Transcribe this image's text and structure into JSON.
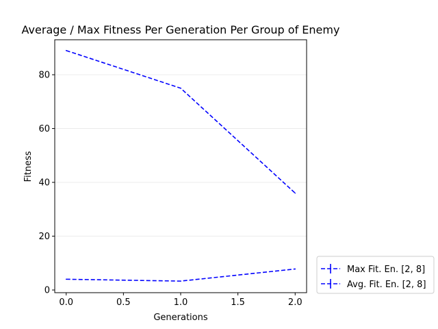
{
  "chart_data": {
    "type": "line",
    "title": "Average / Max Fitness Per Generation Per Group of Enemy",
    "xlabel": "Generations",
    "ylabel": "Fitness",
    "x": [
      0,
      1,
      2
    ],
    "xlim": [
      -0.1,
      2.1
    ],
    "ylim": [
      -1,
      93
    ],
    "xticks": [
      "0.0",
      "0.5",
      "1.0",
      "1.5",
      "2.0"
    ],
    "yticks": [
      "0",
      "20",
      "40",
      "60",
      "80"
    ],
    "grid": "horizontal",
    "legend_position": "outside-bottom-right",
    "series": [
      {
        "name": "Max Fit. En. [2, 8]",
        "values": [
          89,
          75,
          36
        ],
        "color": "#0000ff",
        "style": "dashed"
      },
      {
        "name": "Avg. Fit. En. [2, 8]",
        "values": [
          4,
          3.3,
          7.8
        ],
        "color": "#0000ff",
        "style": "dashed"
      }
    ]
  }
}
